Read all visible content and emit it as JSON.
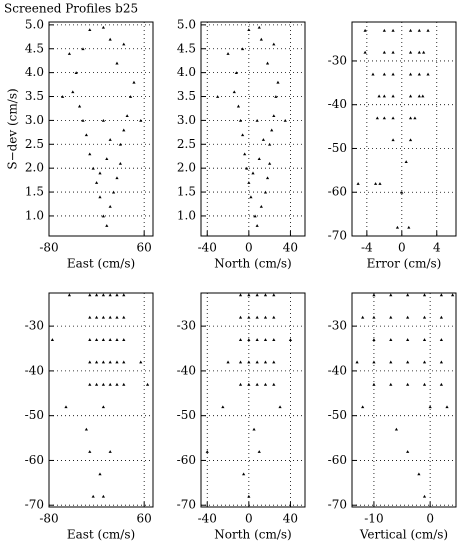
{
  "title": "Screened Profiles b25",
  "chart_data": [
    {
      "type": "scatter",
      "xlabel": "East (cm/s)",
      "ylabel": "S−dev (cm/s)",
      "xlim": [
        -80,
        73
      ],
      "ylim": [
        0.58,
        5.06
      ],
      "xticks": [
        -80,
        60
      ],
      "yticks": [
        {
          "value": 1,
          "label": "1.0"
        },
        1.5,
        {
          "value": 2,
          "label": "2.0"
        },
        2.5,
        {
          "value": 3,
          "label": "3.0"
        },
        3.5,
        {
          "value": 4,
          "label": "4.0"
        },
        4.5,
        {
          "value": 5,
          "label": "5.0"
        }
      ],
      "x": [
        5,
        0,
        10,
        -5,
        15,
        -10,
        20,
        -15,
        25,
        -20,
        25,
        -25,
        30,
        -30,
        35,
        -35,
        40,
        -45,
        45,
        -40,
        20,
        -30,
        10,
        -20,
        0,
        5,
        -5,
        10,
        -60,
        55,
        -50,
        30,
        0
      ],
      "y": [
        0.8,
        1.0,
        1.2,
        1.4,
        1.5,
        1.7,
        1.8,
        2.0,
        2.1,
        2.3,
        2.5,
        2.7,
        2.8,
        3.0,
        3.1,
        3.3,
        3.5,
        3.6,
        3.8,
        4.0,
        4.2,
        4.5,
        4.7,
        4.9,
        3.0,
        2.2,
        1.9,
        2.6,
        3.5,
        3.0,
        4.4,
        4.6,
        4.95
      ]
    },
    {
      "type": "scatter",
      "xlabel": "North (cm/s)",
      "xlim": [
        -46,
        54
      ],
      "ylim": [
        0.58,
        5.06
      ],
      "xticks": [
        -40,
        0,
        40
      ],
      "yticks": [
        {
          "value": 1,
          "label": "1.0"
        },
        1.5,
        {
          "value": 2,
          "label": "2.0"
        },
        2.5,
        {
          "value": 3,
          "label": "3.0"
        },
        3.5,
        {
          "value": 4,
          "label": "4.0"
        },
        4.5,
        {
          "value": 5,
          "label": "5.0"
        }
      ],
      "x": [
        8,
        6,
        12,
        2,
        16,
        0,
        18,
        -2,
        20,
        -4,
        20,
        -6,
        22,
        -8,
        24,
        -10,
        26,
        -14,
        28,
        -12,
        18,
        -6,
        12,
        0,
        8,
        10,
        4,
        14,
        -30,
        35,
        -20,
        24,
        10
      ],
      "y": [
        0.8,
        1.0,
        1.2,
        1.4,
        1.5,
        1.7,
        1.8,
        2.0,
        2.1,
        2.3,
        2.5,
        2.7,
        2.8,
        3.0,
        3.1,
        3.3,
        3.5,
        3.6,
        3.8,
        4.0,
        4.2,
        4.5,
        4.7,
        4.9,
        3.0,
        2.2,
        1.9,
        2.6,
        3.5,
        3.0,
        4.4,
        4.6,
        4.95
      ]
    },
    {
      "type": "scatter",
      "xlabel": "Error (cm/s)",
      "xlim": [
        -5.7,
        6.2
      ],
      "ylim": [
        -70,
        -21.1
      ],
      "xticks": [
        -4,
        0,
        4
      ],
      "yticks": [
        -30,
        -40,
        -50,
        -60,
        -70
      ],
      "x": [
        -4.2,
        -2,
        -1,
        1,
        2,
        3,
        -4.2,
        -2,
        -1,
        1,
        2,
        2.5,
        -3.3,
        -2,
        -1,
        1,
        2,
        3,
        -2.6,
        -2,
        -1,
        1,
        2,
        2.4,
        -2.8,
        -2,
        -1,
        1,
        1.5,
        -1,
        1,
        0.5,
        -5,
        -3,
        -2.5,
        0,
        -0.5,
        0.8
      ],
      "y": [
        -23,
        -23,
        -23,
        -23,
        -23,
        -23,
        -28,
        -28,
        -28,
        -28,
        -28,
        -28,
        -33,
        -33,
        -33,
        -33,
        -33,
        -33,
        -38,
        -38,
        -38,
        -38,
        -38,
        -38,
        -43,
        -43,
        -43,
        -43,
        -43,
        -48,
        -48,
        -53,
        -58,
        -58,
        -58,
        -60,
        -68,
        -68
      ]
    },
    {
      "type": "scatter",
      "xlabel": "East (cm/s)",
      "xlim": [
        -80,
        73
      ],
      "ylim": [
        -70.4,
        -22.6
      ],
      "xticks": [
        -80,
        60
      ],
      "yticks": [
        -30,
        -40,
        -50,
        -60,
        -70
      ],
      "x": [
        -20,
        -10,
        0,
        10,
        20,
        30,
        -20,
        -10,
        0,
        10,
        20,
        30,
        -20,
        -10,
        0,
        10,
        20,
        30,
        -20,
        -10,
        0,
        10,
        20,
        30,
        -20,
        -10,
        0,
        10,
        20,
        30,
        -50,
        55,
        -75,
        65,
        -55,
        0,
        -25,
        -20,
        10,
        -5,
        -15,
        0
      ],
      "y": [
        -23,
        -23,
        -23,
        -23,
        -23,
        -23,
        -28,
        -28,
        -28,
        -28,
        -28,
        -28,
        -33,
        -33,
        -33,
        -33,
        -33,
        -33,
        -38,
        -38,
        -38,
        -38,
        -38,
        -38,
        -43,
        -43,
        -43,
        -43,
        -43,
        -43,
        -23,
        -38,
        -33,
        -43,
        -48,
        -48,
        -53,
        -58,
        -58,
        -63,
        -68,
        -68
      ]
    },
    {
      "type": "scatter",
      "xlabel": "North (cm/s)",
      "xlim": [
        -46,
        54
      ],
      "ylim": [
        -70.4,
        -22.6
      ],
      "xticks": [
        -40,
        0,
        40
      ],
      "yticks": [
        -30,
        -40,
        -50,
        -60,
        -70
      ],
      "x": [
        -8,
        0,
        8,
        16,
        24,
        -8,
        0,
        8,
        16,
        24,
        -8,
        0,
        8,
        16,
        24,
        -8,
        0,
        8,
        16,
        24,
        -8,
        0,
        8,
        16,
        24,
        -40,
        -20,
        40,
        -25,
        5,
        10,
        -5,
        0,
        30
      ],
      "y": [
        -23,
        -23,
        -23,
        -23,
        -23,
        -28,
        -28,
        -28,
        -28,
        -28,
        -33,
        -33,
        -33,
        -33,
        -33,
        -38,
        -38,
        -38,
        -38,
        -38,
        -43,
        -43,
        -43,
        -43,
        -43,
        -58,
        -38,
        -33,
        -48,
        -53,
        -58,
        -63,
        -68,
        -48
      ]
    },
    {
      "type": "scatter",
      "xlabel": "Vertical (cm/s)",
      "xlim": [
        -13.9,
        4.6
      ],
      "ylim": [
        -70.4,
        -22.6
      ],
      "xticks": [
        -10,
        0
      ],
      "yticks": [
        -30,
        -40,
        -50,
        -60,
        -70
      ],
      "x": [
        -10,
        -7,
        -4,
        -1,
        2,
        -10,
        -7,
        -4,
        -1,
        2,
        -10,
        -7,
        -4,
        -1,
        2,
        -10,
        -7,
        -4,
        -1,
        2,
        -10,
        -7,
        -4,
        -1,
        2,
        -13,
        3,
        0,
        -12,
        -6,
        -4,
        -2,
        -1,
        4,
        -12
      ],
      "y": [
        -23,
        -23,
        -23,
        -23,
        -23,
        -28,
        -28,
        -28,
        -28,
        -28,
        -33,
        -33,
        -33,
        -33,
        -33,
        -38,
        -38,
        -38,
        -38,
        -38,
        -43,
        -43,
        -43,
        -43,
        -43,
        -38,
        -48,
        -48,
        -48,
        -53,
        -58,
        -63,
        -68,
        -23,
        -28
      ]
    }
  ]
}
